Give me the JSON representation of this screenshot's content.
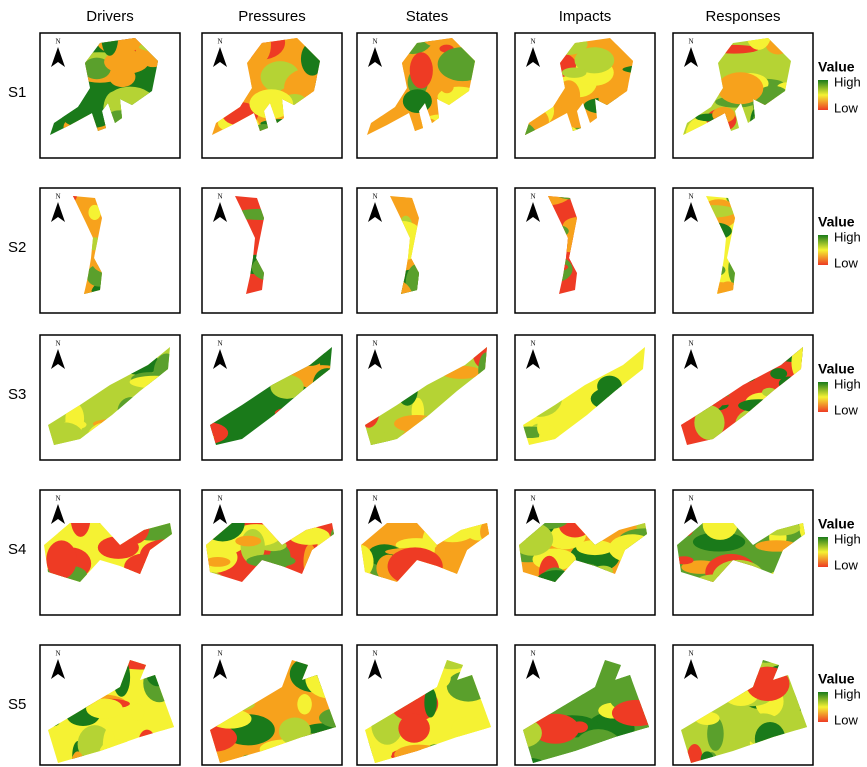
{
  "columns": [
    "Drivers",
    "Pressures",
    "States",
    "Impacts",
    "Responses"
  ],
  "rows": [
    "S1",
    "S2",
    "S3",
    "S4",
    "S5"
  ],
  "north": "N",
  "legend": {
    "title": "Value",
    "high": "High",
    "low": "Low"
  }
}
